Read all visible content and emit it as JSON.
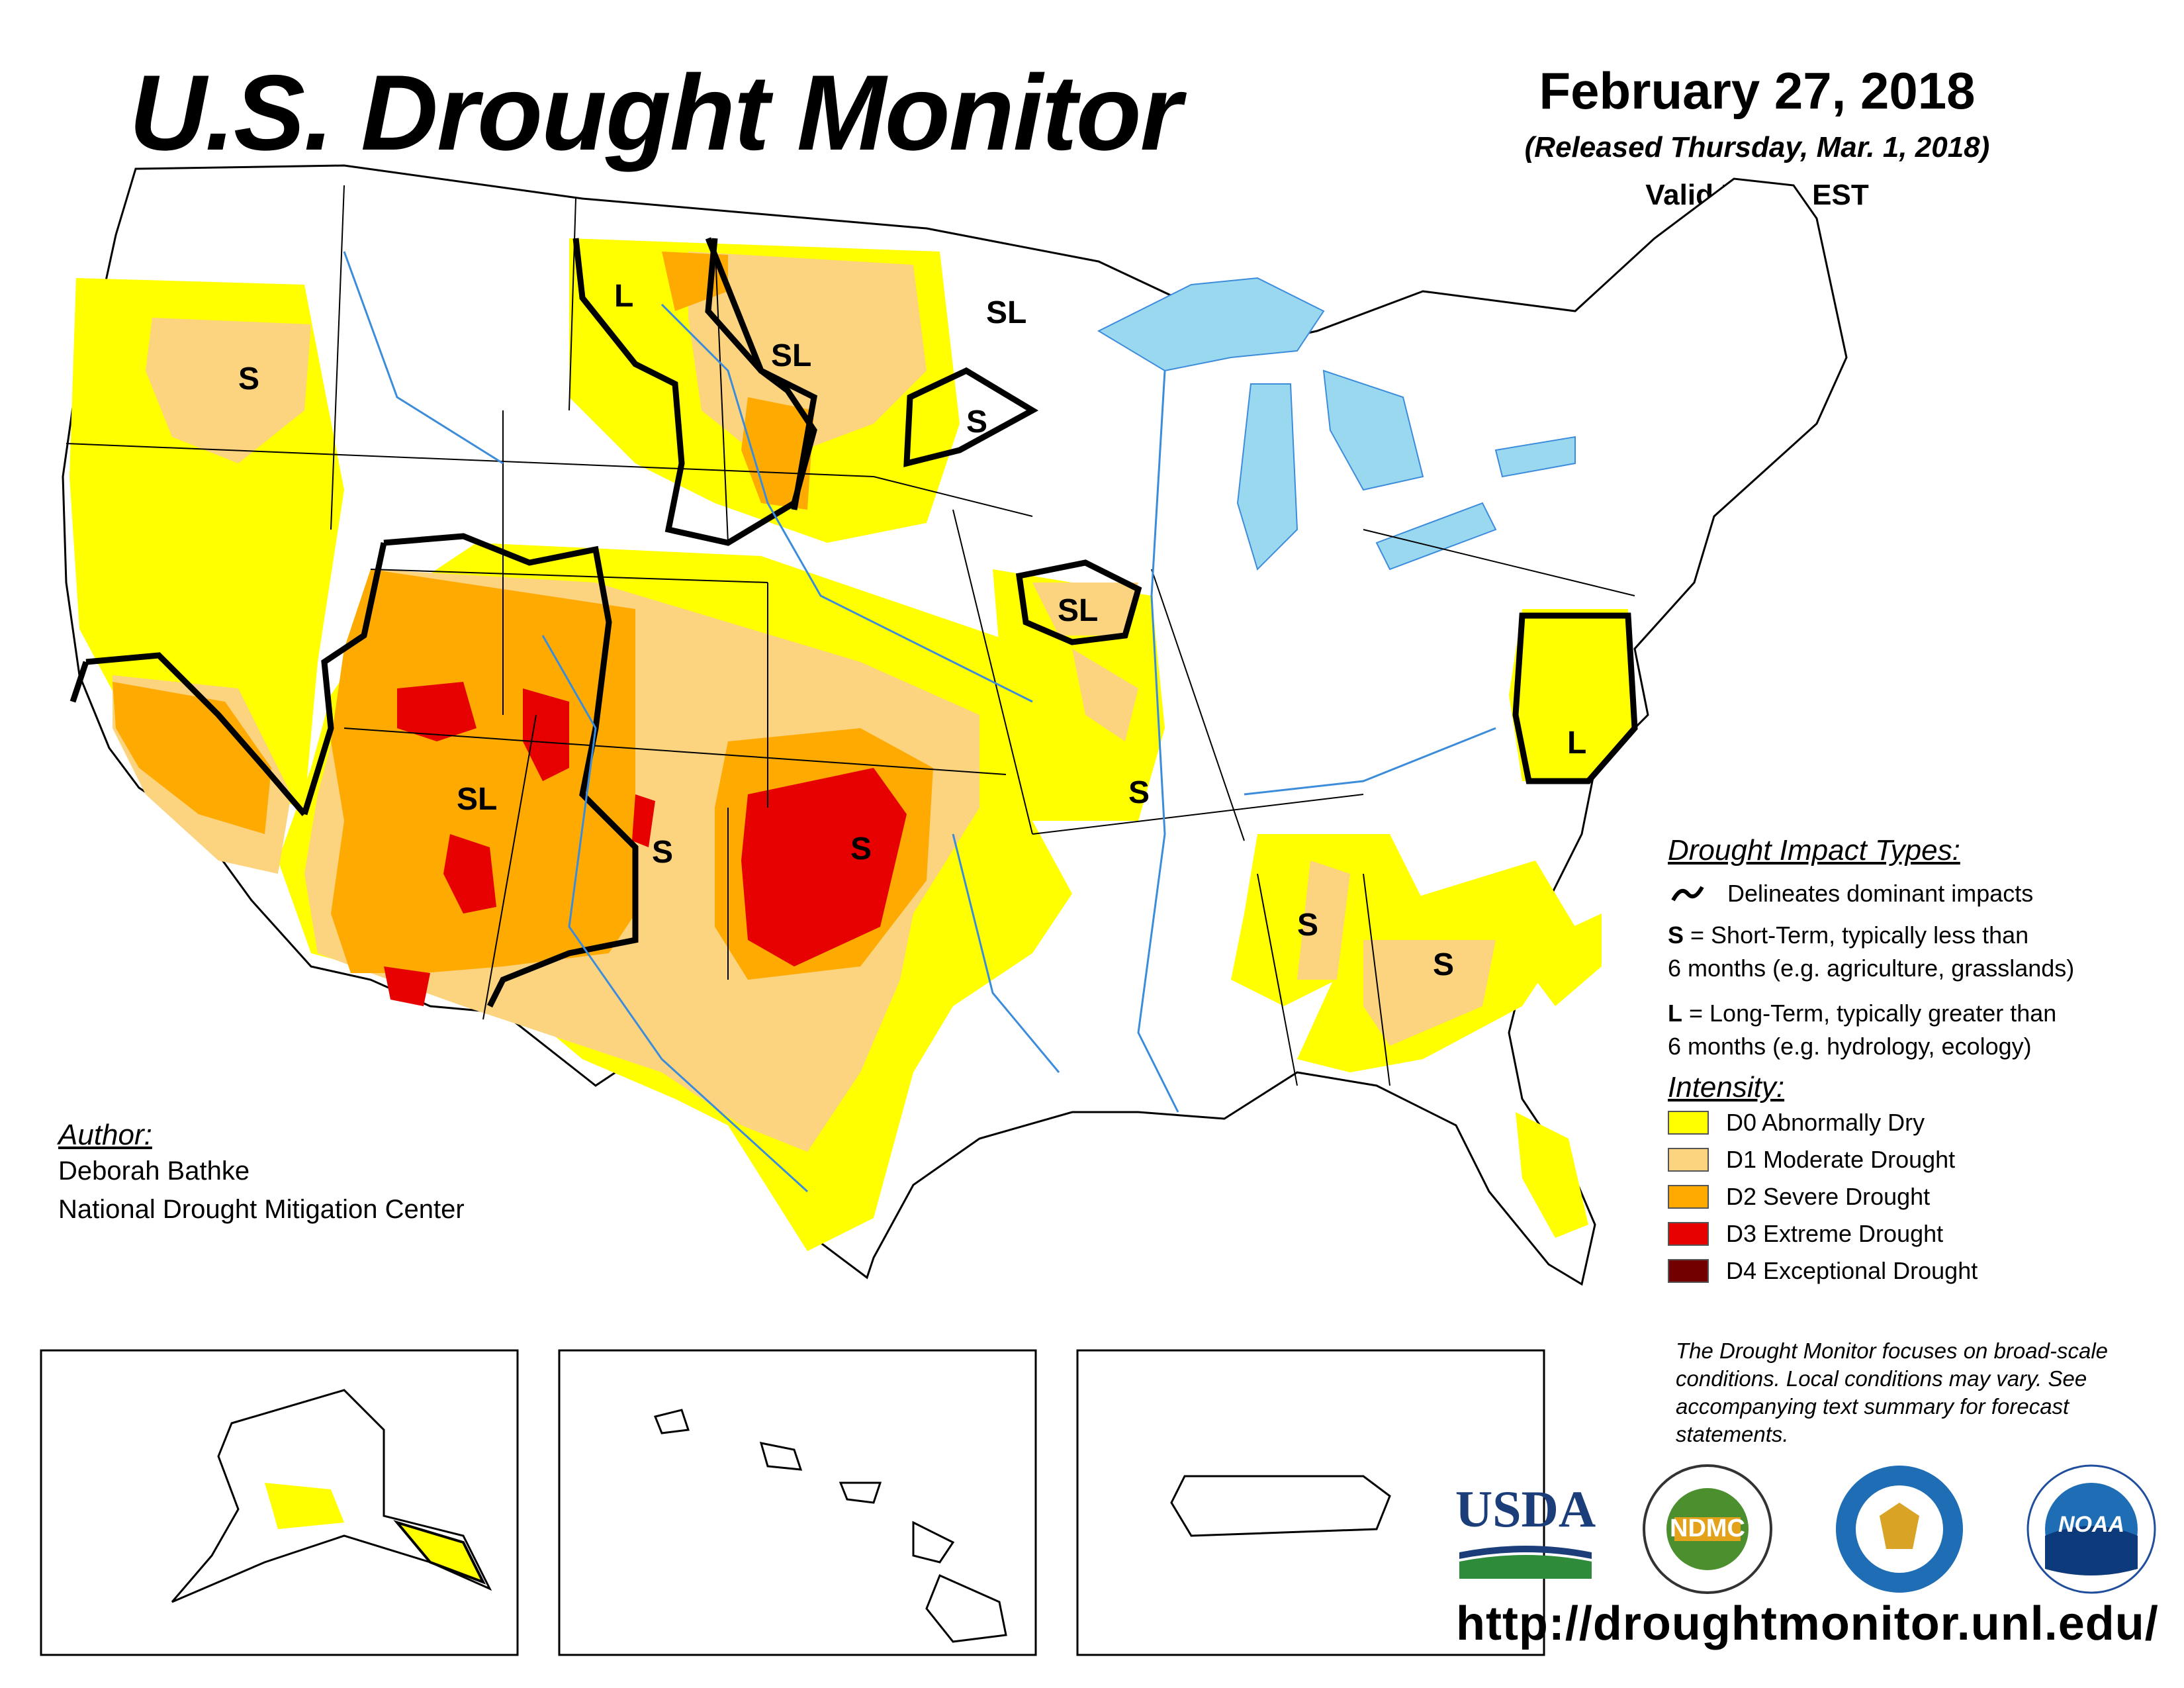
{
  "header": {
    "title": "U.S. Drought Monitor",
    "date": "February 27, 2018",
    "released": "(Released Thursday, Mar. 1, 2018)",
    "valid": "Valid 7 a.m. EST"
  },
  "map_labels": {
    "s_oregon": "S",
    "l_montana": "L",
    "sl_dakota": "SL",
    "sl_minnesota": "SL",
    "s_southdakota": "S",
    "sl_iowa": "SL",
    "sl_southwest": "SL",
    "s_newmexico": "S",
    "s_oklahoma": "S",
    "s_missouri": "S",
    "l_virginia": "L",
    "s_mississippi": "S",
    "s_georgia": "S"
  },
  "legend": {
    "impact_heading": "Drought Impact Types:",
    "delineates": "Delineates dominant impacts",
    "s_key": "S",
    "s_text_1": " = Short-Term, typically less than",
    "s_text_2": "6 months (e.g. agriculture, grasslands)",
    "l_key": "L",
    "l_text_1": " = Long-Term, typically greater than",
    "l_text_2": "6 months (e.g. hydrology, ecology)",
    "intensity_heading": "Intensity:",
    "categories": [
      {
        "label": "D0 Abnormally Dry",
        "color": "#FFFF00"
      },
      {
        "label": "D1 Moderate Drought",
        "color": "#FCD37F"
      },
      {
        "label": "D2 Severe Drought",
        "color": "#FFAA00"
      },
      {
        "label": "D3 Extreme Drought",
        "color": "#E60000"
      },
      {
        "label": "D4 Exceptional Drought",
        "color": "#730000"
      }
    ]
  },
  "author": {
    "label": "Author:",
    "name": "Deborah Bathke",
    "organization": "National Drought Mitigation Center"
  },
  "disclaimer": "The Drought Monitor focuses on broad-scale conditions. Local conditions may vary. See accompanying text summary for forecast statements.",
  "logos": {
    "usda": "USDA",
    "ndmc": "NDMC",
    "noaa": "NOAA"
  },
  "url": "http://droughtmonitor.unl.edu/",
  "colors": {
    "water": "#9AD8F0",
    "river": "#3C8CDC",
    "d0": "#FFFF00",
    "d1": "#FCD37F",
    "d2": "#FFAA00",
    "d3": "#E60000"
  }
}
